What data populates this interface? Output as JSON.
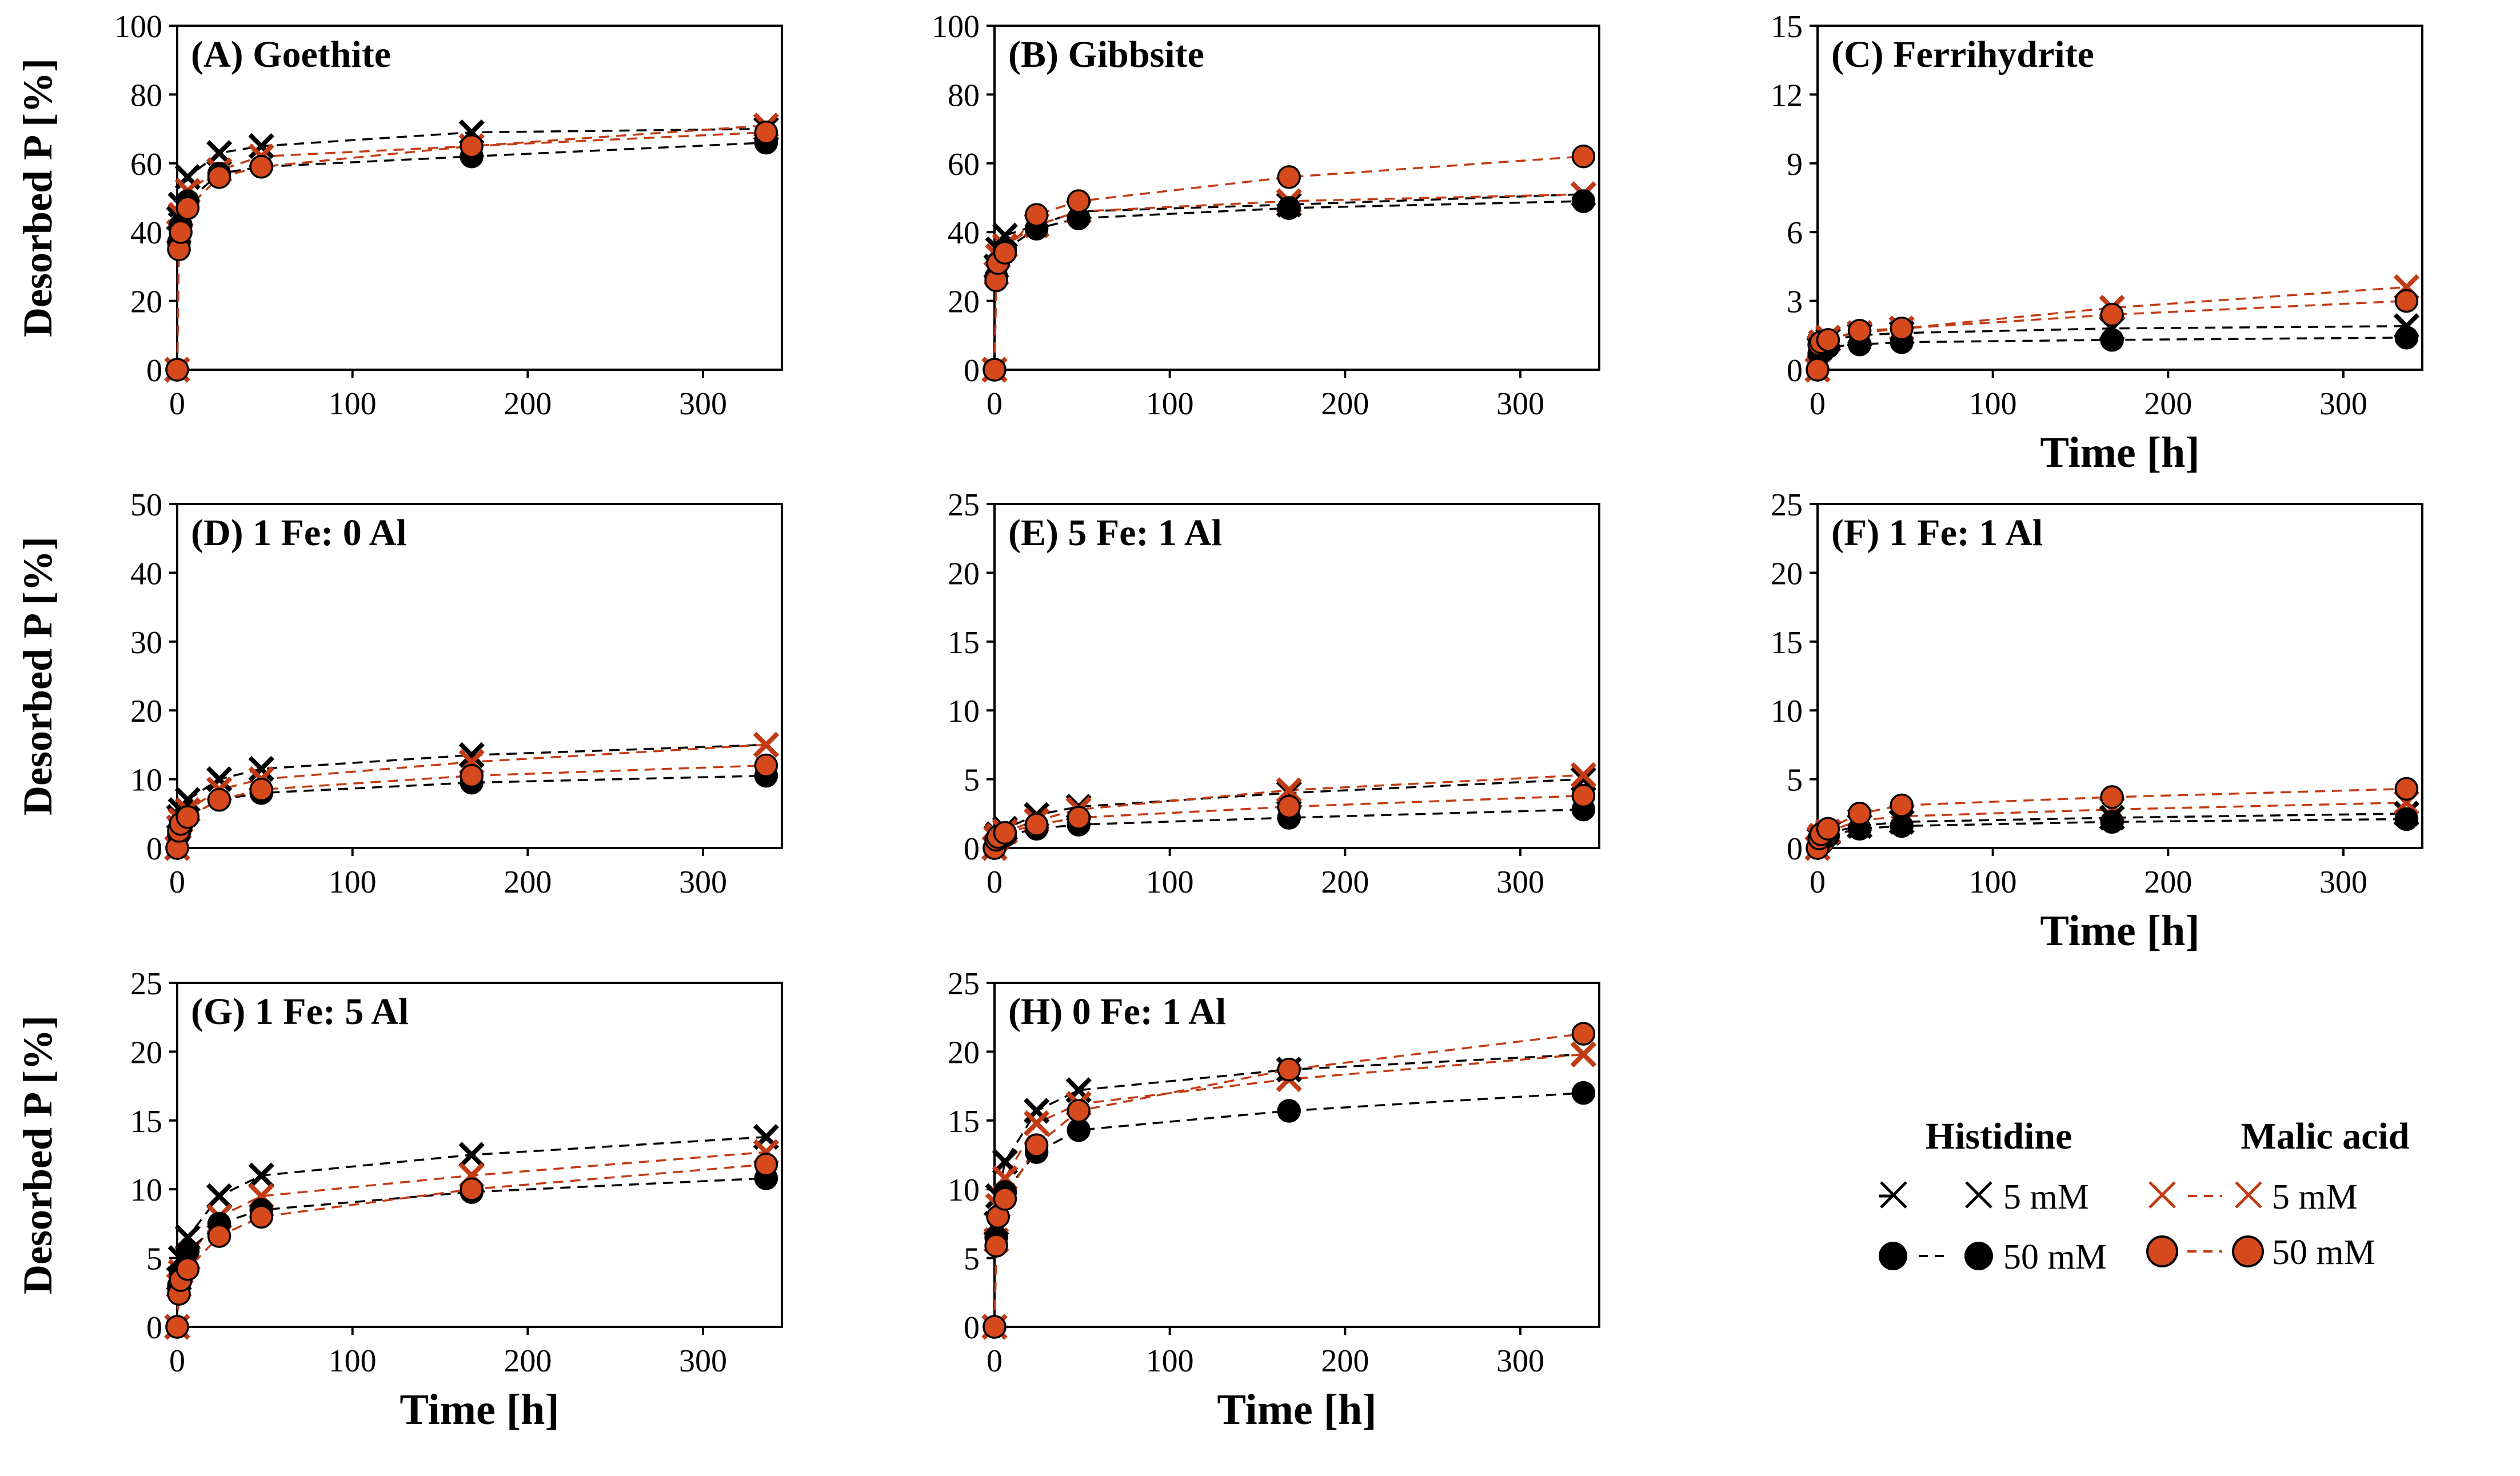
{
  "figure": {
    "ylabel": "Desorbed P [%]",
    "xlabel": "Time [h]",
    "legend": {
      "histidine_title": "Histidine",
      "malic_title": "Malic acid",
      "label_5mM": "5 mM",
      "label_50mM": "50 mM"
    }
  },
  "colors": {
    "histidine": "#000000",
    "malic": "#c23b14",
    "malic_fill": "#d6491c"
  },
  "chart_data": [
    {
      "type": "line",
      "panel": "A",
      "title": "(A) Goethite",
      "xlabel": "",
      "ylabel": "Desorbed P [%]",
      "xlim": [
        0,
        345
      ],
      "xticks": [
        0,
        100,
        200,
        300
      ],
      "ylim": [
        0,
        100
      ],
      "yticks": [
        0,
        20,
        40,
        60,
        80,
        100
      ],
      "x": [
        0,
        1,
        2,
        6,
        24,
        48,
        168,
        336
      ],
      "series": [
        {
          "name": "Histidine 5 mM",
          "marker": "x",
          "color": "black",
          "values": [
            0,
            44,
            48,
            56,
            63,
            65,
            69,
            70
          ]
        },
        {
          "name": "Histidine 50 mM",
          "marker": "circle",
          "color": "black",
          "values": [
            0,
            37,
            42,
            49,
            57,
            59,
            62,
            66
          ]
        },
        {
          "name": "Malic acid 5 mM",
          "marker": "x",
          "color": "orange",
          "values": [
            0,
            40,
            45,
            52,
            58,
            62,
            65,
            71
          ]
        },
        {
          "name": "Malic acid 50 mM",
          "marker": "circle",
          "color": "orange",
          "values": [
            0,
            35,
            40,
            47,
            56,
            59,
            65,
            69
          ]
        }
      ]
    },
    {
      "type": "line",
      "panel": "B",
      "title": "(B) Gibbsite",
      "xlabel": "",
      "ylabel": "",
      "xlim": [
        0,
        345
      ],
      "xticks": [
        0,
        100,
        200,
        300
      ],
      "ylim": [
        0,
        100
      ],
      "yticks": [
        0,
        20,
        40,
        60,
        80,
        100
      ],
      "x": [
        0,
        1,
        2,
        6,
        24,
        48,
        168,
        336
      ],
      "series": [
        {
          "name": "Histidine 5 mM",
          "marker": "x",
          "color": "black",
          "values": [
            0,
            30,
            35,
            39,
            42,
            46,
            48,
            51
          ]
        },
        {
          "name": "Histidine 50 mM",
          "marker": "circle",
          "color": "black",
          "values": [
            0,
            27,
            31,
            35,
            41,
            44,
            47,
            49
          ]
        },
        {
          "name": "Malic acid 5 mM",
          "marker": "x",
          "color": "orange",
          "values": [
            0,
            28,
            33,
            36,
            42,
            46,
            49,
            51
          ]
        },
        {
          "name": "Malic acid 50 mM",
          "marker": "circle",
          "color": "orange",
          "values": [
            0,
            26,
            31,
            34,
            45,
            49,
            56,
            62
          ]
        }
      ]
    },
    {
      "type": "line",
      "panel": "C",
      "title": "(C) Ferrihydrite",
      "xlabel": "Time [h]",
      "ylabel": "",
      "xlim": [
        0,
        345
      ],
      "xticks": [
        0,
        100,
        200,
        300
      ],
      "ylim": [
        0,
        15
      ],
      "yticks": [
        0,
        3,
        6,
        9,
        12,
        15
      ],
      "x": [
        0,
        1,
        2,
        6,
        24,
        48,
        168,
        336
      ],
      "series": [
        {
          "name": "Histidine 5 mM",
          "marker": "x",
          "color": "black",
          "values": [
            0,
            0.9,
            1.1,
            1.3,
            1.5,
            1.6,
            1.8,
            1.9
          ]
        },
        {
          "name": "Histidine 50 mM",
          "marker": "circle",
          "color": "black",
          "values": [
            0,
            0.7,
            0.9,
            1.0,
            1.1,
            1.2,
            1.3,
            1.4
          ]
        },
        {
          "name": "Malic acid 5 mM",
          "marker": "x",
          "color": "orange",
          "values": [
            0,
            1.0,
            1.2,
            1.4,
            1.6,
            1.8,
            2.7,
            3.6
          ]
        },
        {
          "name": "Malic acid 50 mM",
          "marker": "circle",
          "color": "orange",
          "values": [
            0,
            1.1,
            1.2,
            1.3,
            1.7,
            1.8,
            2.4,
            3.0
          ]
        }
      ]
    },
    {
      "type": "line",
      "panel": "D",
      "title": "(D) 1 Fe: 0 Al",
      "xlabel": "",
      "ylabel": "Desorbed P [%]",
      "xlim": [
        0,
        345
      ],
      "xticks": [
        0,
        100,
        200,
        300
      ],
      "ylim": [
        0,
        50
      ],
      "yticks": [
        0,
        10,
        20,
        30,
        40,
        50
      ],
      "x": [
        0,
        1,
        2,
        6,
        24,
        48,
        168,
        336
      ],
      "series": [
        {
          "name": "Histidine 5 mM",
          "marker": "x",
          "color": "black",
          "values": [
            0,
            4.5,
            5.5,
            7.0,
            10.0,
            11.5,
            13.5,
            15.0
          ]
        },
        {
          "name": "Histidine 50 mM",
          "marker": "circle",
          "color": "black",
          "values": [
            0,
            2.0,
            3.0,
            4.5,
            7.0,
            8.0,
            9.5,
            10.5
          ]
        },
        {
          "name": "Malic acid 5 mM",
          "marker": "x",
          "color": "orange",
          "values": [
            0,
            3.0,
            4.0,
            5.5,
            8.5,
            10.0,
            12.5,
            15.0
          ]
        },
        {
          "name": "Malic acid 50 mM",
          "marker": "circle",
          "color": "orange",
          "values": [
            0,
            2.5,
            3.5,
            4.5,
            7.0,
            8.5,
            10.5,
            12.0
          ]
        }
      ]
    },
    {
      "type": "line",
      "panel": "E",
      "title": "(E) 5 Fe: 1 Al",
      "xlabel": "",
      "ylabel": "",
      "xlim": [
        0,
        345
      ],
      "xticks": [
        0,
        100,
        200,
        300
      ],
      "ylim": [
        0,
        25
      ],
      "yticks": [
        0,
        5,
        10,
        15,
        20,
        25
      ],
      "x": [
        0,
        1,
        2,
        6,
        24,
        48,
        168,
        336
      ],
      "series": [
        {
          "name": "Histidine 5 mM",
          "marker": "x",
          "color": "black",
          "values": [
            0,
            0.8,
            1.0,
            1.4,
            2.4,
            3.0,
            4.0,
            5.0
          ]
        },
        {
          "name": "Histidine 50 mM",
          "marker": "circle",
          "color": "black",
          "values": [
            0,
            0.4,
            0.6,
            0.9,
            1.4,
            1.7,
            2.2,
            2.8
          ]
        },
        {
          "name": "Malic acid 5 mM",
          "marker": "x",
          "color": "orange",
          "values": [
            0,
            0.7,
            0.9,
            1.2,
            2.0,
            2.8,
            4.2,
            5.3
          ]
        },
        {
          "name": "Malic acid 50 mM",
          "marker": "circle",
          "color": "orange",
          "values": [
            0,
            0.6,
            0.8,
            1.1,
            1.7,
            2.2,
            3.0,
            3.8
          ]
        }
      ]
    },
    {
      "type": "line",
      "panel": "F",
      "title": "(F) 1 Fe: 1 Al",
      "xlabel": "Time [h]",
      "ylabel": "",
      "xlim": [
        0,
        345
      ],
      "xticks": [
        0,
        100,
        200,
        300
      ],
      "ylim": [
        0,
        25
      ],
      "yticks": [
        0,
        5,
        10,
        15,
        20,
        25
      ],
      "x": [
        0,
        1,
        2,
        6,
        24,
        48,
        168,
        336
      ],
      "series": [
        {
          "name": "Histidine 5 mM",
          "marker": "x",
          "color": "black",
          "values": [
            0,
            0.6,
            0.8,
            1.1,
            1.6,
            1.9,
            2.2,
            2.5
          ]
        },
        {
          "name": "Histidine 50 mM",
          "marker": "circle",
          "color": "black",
          "values": [
            0,
            0.4,
            0.6,
            0.9,
            1.4,
            1.6,
            1.9,
            2.1
          ]
        },
        {
          "name": "Malic acid 5 mM",
          "marker": "x",
          "color": "orange",
          "values": [
            0,
            0.7,
            0.9,
            1.2,
            2.0,
            2.3,
            2.8,
            3.3
          ]
        },
        {
          "name": "Malic acid 50 mM",
          "marker": "circle",
          "color": "orange",
          "values": [
            0,
            0.7,
            1.0,
            1.4,
            2.5,
            3.1,
            3.7,
            4.3
          ]
        }
      ]
    },
    {
      "type": "line",
      "panel": "G",
      "title": "(G) 1 Fe: 5 Al",
      "xlabel": "Time [h]",
      "ylabel": "Desorbed P [%]",
      "xlim": [
        0,
        345
      ],
      "xticks": [
        0,
        100,
        200,
        300
      ],
      "ylim": [
        0,
        25
      ],
      "yticks": [
        0,
        5,
        10,
        15,
        20,
        25
      ],
      "x": [
        0,
        1,
        2,
        6,
        24,
        48,
        168,
        336
      ],
      "series": [
        {
          "name": "Histidine 5 mM",
          "marker": "x",
          "color": "black",
          "values": [
            0,
            3.5,
            5.0,
            6.5,
            9.5,
            11.0,
            12.5,
            13.8
          ]
        },
        {
          "name": "Histidine 50 mM",
          "marker": "circle",
          "color": "black",
          "values": [
            0,
            3.0,
            4.0,
            5.5,
            7.5,
            8.5,
            9.8,
            10.8
          ]
        },
        {
          "name": "Malic acid 5 mM",
          "marker": "x",
          "color": "orange",
          "values": [
            0,
            3.0,
            4.0,
            5.0,
            8.0,
            9.5,
            11.0,
            12.7
          ]
        },
        {
          "name": "Malic acid 50 mM",
          "marker": "circle",
          "color": "orange",
          "values": [
            0,
            2.4,
            3.4,
            4.2,
            6.6,
            8.0,
            10.0,
            11.8
          ]
        }
      ]
    },
    {
      "type": "line",
      "panel": "H",
      "title": "(H) 0 Fe: 1 Al",
      "xlabel": "Time [h]",
      "ylabel": "",
      "xlim": [
        0,
        345
      ],
      "xticks": [
        0,
        100,
        200,
        300
      ],
      "ylim": [
        0,
        25
      ],
      "yticks": [
        0,
        5,
        10,
        15,
        20,
        25
      ],
      "x": [
        0,
        1,
        2,
        6,
        24,
        48,
        168,
        336
      ],
      "series": [
        {
          "name": "Histidine 5 mM",
          "marker": "x",
          "color": "black",
          "values": [
            0,
            7.5,
            9.5,
            12.0,
            15.7,
            17.2,
            18.7,
            19.8
          ]
        },
        {
          "name": "Histidine 50 mM",
          "marker": "circle",
          "color": "black",
          "values": [
            0,
            6.5,
            8.0,
            9.8,
            12.7,
            14.3,
            15.7,
            17.0
          ]
        },
        {
          "name": "Malic acid 5 mM",
          "marker": "x",
          "color": "orange",
          "values": [
            0,
            6.3,
            8.8,
            10.8,
            14.8,
            16.2,
            18.0,
            19.8
          ]
        },
        {
          "name": "Malic acid 50 mM",
          "marker": "circle",
          "color": "orange",
          "values": [
            0,
            5.9,
            8.0,
            9.3,
            13.2,
            15.7,
            18.7,
            21.3
          ]
        }
      ]
    }
  ]
}
